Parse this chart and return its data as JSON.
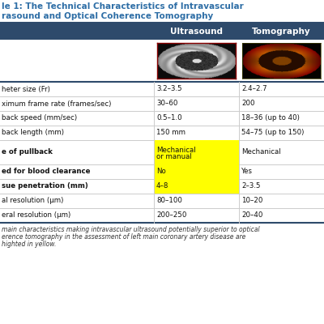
{
  "title_line1": "le 1: The Technical Characteristics of Intravascular",
  "title_line2": "rasound and Optical Coherence Tomography",
  "header_bg": "#2E4A6B",
  "header_text_color": "#FFFFFF",
  "title_text_color": "#2E6EA6",
  "col1_header": "Ultrasound",
  "col2_header": "Tomography",
  "rows": [
    {
      "label": "heter size (Fr)",
      "col1": "3.2–3.5",
      "col2": "2.4–2.7",
      "hl": false,
      "tall": false
    },
    {
      "label": "ximum frame rate (frames/sec)",
      "col1": "30–60",
      "col2": "200",
      "hl": false,
      "tall": false
    },
    {
      "label": "back speed (mm/sec)",
      "col1": "0.5–1.0",
      "col2": "18–36 (up to 40)",
      "hl": false,
      "tall": false
    },
    {
      "label": "back length (mm)",
      "col1": "150 mm",
      "col2": "54–75 (up to 150)",
      "hl": false,
      "tall": false
    },
    {
      "label": "e of pullback",
      "col1": "Mechanical\nor manual",
      "col2": "Mechanical",
      "hl": true,
      "tall": true
    },
    {
      "label": "ed for blood clearance",
      "col1": "No",
      "col2": "Yes",
      "hl": true,
      "tall": false
    },
    {
      "label": "sue penetration (mm)",
      "col1": "4–8",
      "col2": "2–3.5",
      "hl": true,
      "tall": false
    },
    {
      "label": "al resolution (μm)",
      "col1": "80–100",
      "col2": "10–20",
      "hl": false,
      "tall": false
    },
    {
      "label": "eral resolution (μm)",
      "col1": "200–250",
      "col2": "20–40",
      "hl": false,
      "tall": false
    }
  ],
  "footnote_lines": [
    "main characteristics making intravascular ultrasound potentially superior to optical",
    "erence tomography in the assessment of left main coronary artery disease are",
    "highted in yellow."
  ],
  "yellow": "#FFFF00",
  "white": "#FFFFFF",
  "divider": "#CCCCCC",
  "header_bg_dark": "#2E4A6B",
  "bold_rows": [
    4,
    5,
    6
  ]
}
